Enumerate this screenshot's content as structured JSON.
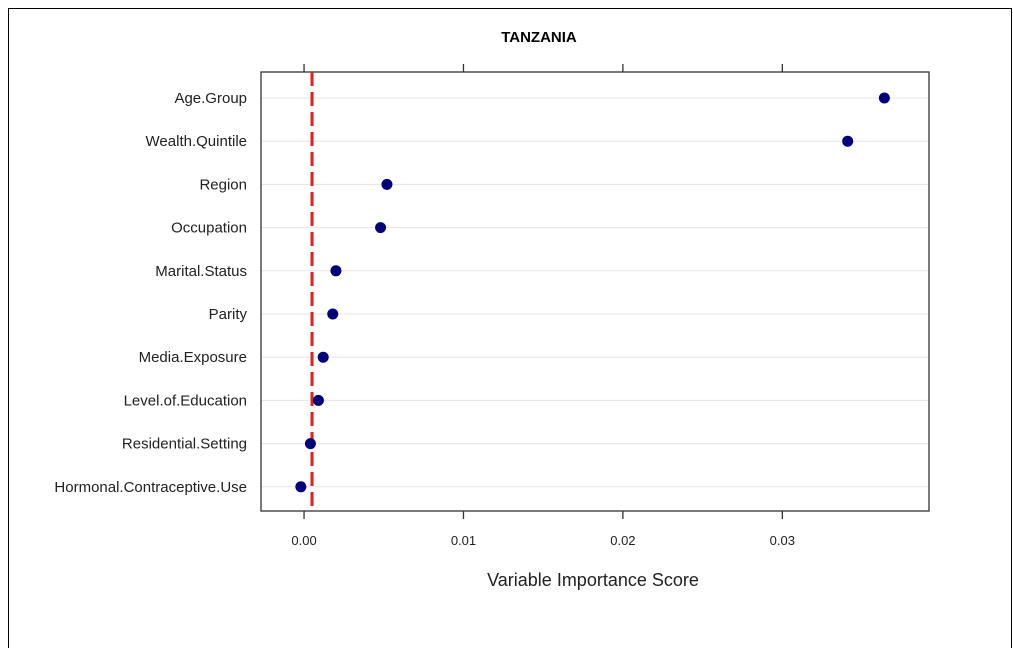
{
  "chart_data": {
    "type": "scatter",
    "title": "TANZANIA",
    "xlabel": "Variable Importance Score",
    "ylabel": "",
    "xlim": [
      -0.0027,
      0.0392
    ],
    "x_ticks": [
      0.0,
      0.01,
      0.02,
      0.03
    ],
    "x_tick_labels": [
      "0.00",
      "0.01",
      "0.02",
      "0.03"
    ],
    "grid": "horizontal",
    "legend": "none",
    "reference_line": {
      "x": 0.0005,
      "color": "#e0201b",
      "style": "dashed"
    },
    "point_color": "#00007a",
    "categories": [
      "Age.Group",
      "Wealth.Quintile",
      "Region",
      "Occupation",
      "Marital.Status",
      "Parity",
      "Media.Exposure",
      "Level.of.Education",
      "Residential.Setting",
      "Hormonal.Contraceptive.Use"
    ],
    "values": [
      0.0364,
      0.0341,
      0.0052,
      0.0048,
      0.002,
      0.0018,
      0.0012,
      0.0009,
      0.0004,
      -0.0002
    ]
  }
}
